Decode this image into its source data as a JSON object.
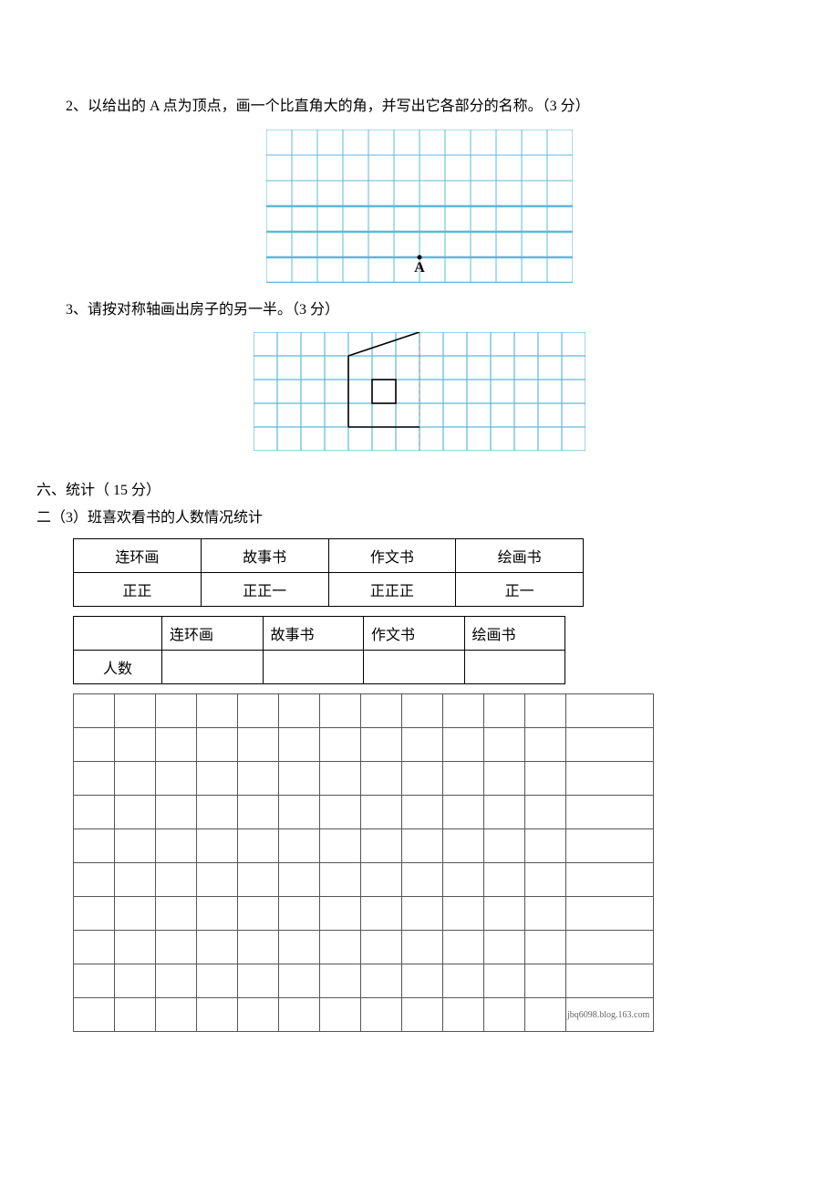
{
  "q2": {
    "text": "2、以给出的 A 点为顶点，画一个比直角大的角，并写出它各部分的名称。（3 分）",
    "grid": {
      "cols": 12,
      "rows": 6,
      "cell": 28,
      "stroke": "#5fb8d8",
      "strokeWidth": 1,
      "boldRowsFromBottom": 3,
      "boldRowStroke": "#5fb8d8",
      "boldRowStrokeWidth": 2.5,
      "pointLabel": "A",
      "pointCol": 6,
      "pointRowFromBottom": 1
    }
  },
  "q3": {
    "text": "3、请按对称轴画出房子的另一半。（3 分）",
    "grid": {
      "cols": 14,
      "rows": 5,
      "cell": 26,
      "stroke": "#5fb8d8",
      "strokeWidth": 1.2,
      "axisCol": 7,
      "axisDash": "4 4",
      "lineColor": "#000000",
      "lineWidth": 1.6,
      "house": {
        "roofStart": [
          4,
          1
        ],
        "roofEnd": [
          7,
          0
        ],
        "wallLeftX": 4,
        "wallBottomY": 4,
        "wallTopY": 1,
        "wallRightX": 7,
        "doorX": 5,
        "doorTopY": 2,
        "doorBotY": 3,
        "doorW": 1
      }
    }
  },
  "section6": {
    "title": "六、统计（ 15 分）",
    "subtitle": "二（3）班喜欢看书的人数情况统计"
  },
  "tallyTable": {
    "headers": [
      "连环画",
      "故事书",
      "作文书",
      "绘画书"
    ],
    "values": [
      "正正",
      "正正一",
      "正正正",
      "正一"
    ]
  },
  "countTable": {
    "headers": [
      "",
      "连环画",
      "故事书",
      "作文书",
      "绘画书"
    ],
    "rowLabel": "人数",
    "cells": [
      "",
      "",
      "",
      ""
    ]
  },
  "blankGrid": {
    "cols": 13,
    "rows": 10,
    "watermark": "jbq6098.blog.163.com"
  }
}
